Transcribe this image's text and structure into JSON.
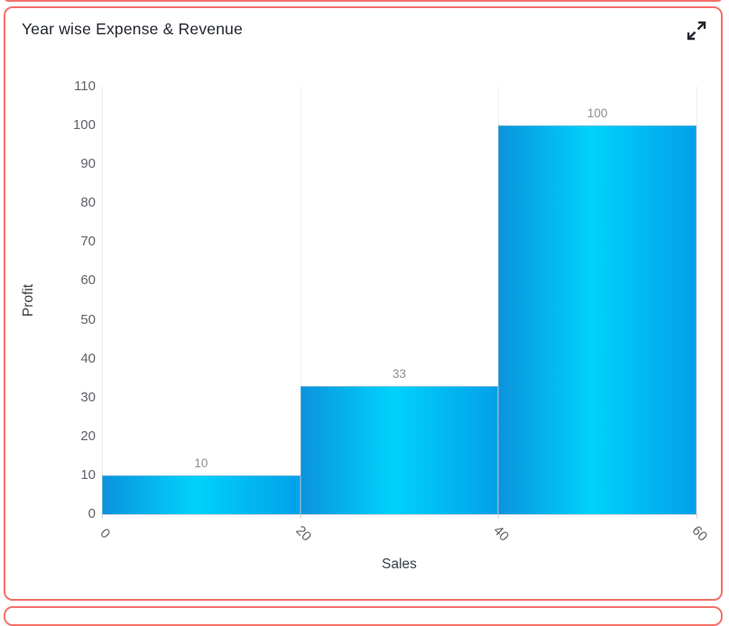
{
  "card": {
    "title": "Year wise Expense & Revenue",
    "expand_icon": "maximize-arrows-icon"
  },
  "chart_data": {
    "type": "bar",
    "subtype": "histogram-adjacent-columns",
    "title": "Year wise Expense & Revenue",
    "xlabel": "Sales",
    "ylabel": "Profit",
    "xlim": [
      0,
      60
    ],
    "ylim": [
      0,
      110
    ],
    "x_ticks": [
      0,
      20,
      40,
      60
    ],
    "y_ticks": [
      0,
      10,
      20,
      30,
      40,
      50,
      60,
      70,
      80,
      90,
      100,
      110
    ],
    "x_tick_rotation_deg": 45,
    "grid": "faint vertical gridlines at x ticks only, no horizontal gridlines",
    "legend": "none",
    "bars": [
      {
        "x0": 0,
        "x1": 20,
        "value": 10,
        "label": "10"
      },
      {
        "x0": 20,
        "x1": 40,
        "value": 33,
        "label": "33"
      },
      {
        "x0": 40,
        "x1": 60,
        "value": 100,
        "label": "100"
      }
    ],
    "colors": {
      "bar_gradient": [
        "#0b93dd",
        "#00d2fc",
        "#02a0e9"
      ],
      "card_border": "#f3716a",
      "title_text": "#23272f",
      "tick_text": "#5f6368",
      "axis_title_text": "#3b4046",
      "data_label_text": "#8b8f94",
      "axis_line": "#ced2d6",
      "gridline": "rgba(0,0,0,0.06)"
    }
  }
}
